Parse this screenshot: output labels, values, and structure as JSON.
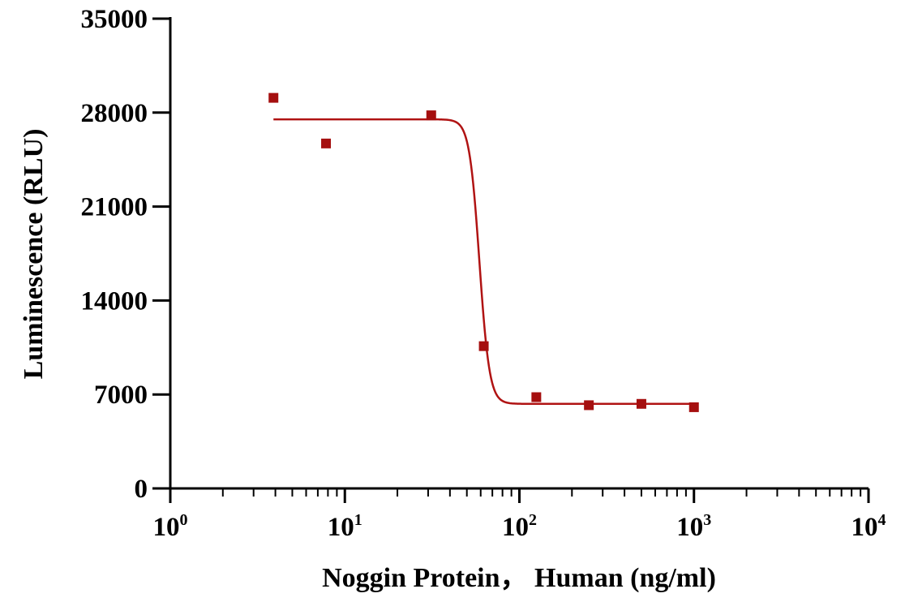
{
  "chart_data": {
    "type": "scatter",
    "xlabel": "Noggin Protein， Human  (ng/ml)",
    "ylabel": "Luminescence (RLU)",
    "x_scale": "log10",
    "xlim": [
      1,
      10000
    ],
    "ylim": [
      0,
      35000
    ],
    "x_ticks": [
      {
        "base": "10",
        "exp": "0",
        "value": 1
      },
      {
        "base": "10",
        "exp": "1",
        "value": 10
      },
      {
        "base": "10",
        "exp": "2",
        "value": 100
      },
      {
        "base": "10",
        "exp": "3",
        "value": 1000
      },
      {
        "base": "10",
        "exp": "4",
        "value": 10000
      }
    ],
    "y_ticks": [
      "0",
      "7000",
      "14000",
      "21000",
      "28000",
      "35000"
    ],
    "series": [
      {
        "points": [
          {
            "x": 3.9,
            "y": 29100
          },
          {
            "x": 7.8,
            "y": 25700
          },
          {
            "x": 31.25,
            "y": 27800
          },
          {
            "x": 62.5,
            "y": 10600
          },
          {
            "x": 125,
            "y": 6800
          },
          {
            "x": 250,
            "y": 6200
          },
          {
            "x": 500,
            "y": 6300
          },
          {
            "x": 1000,
            "y": 6050
          }
        ]
      }
    ],
    "fit_curve": {
      "model": "4PL",
      "top": 27500,
      "bottom": 6300,
      "ic50": 59,
      "hill": 15,
      "x_range": [
        3.9,
        1000
      ]
    },
    "colors": {
      "series": "#a50f0f",
      "curve": "#b01313",
      "axis": "#000000"
    },
    "grid": false,
    "legend": "none"
  }
}
